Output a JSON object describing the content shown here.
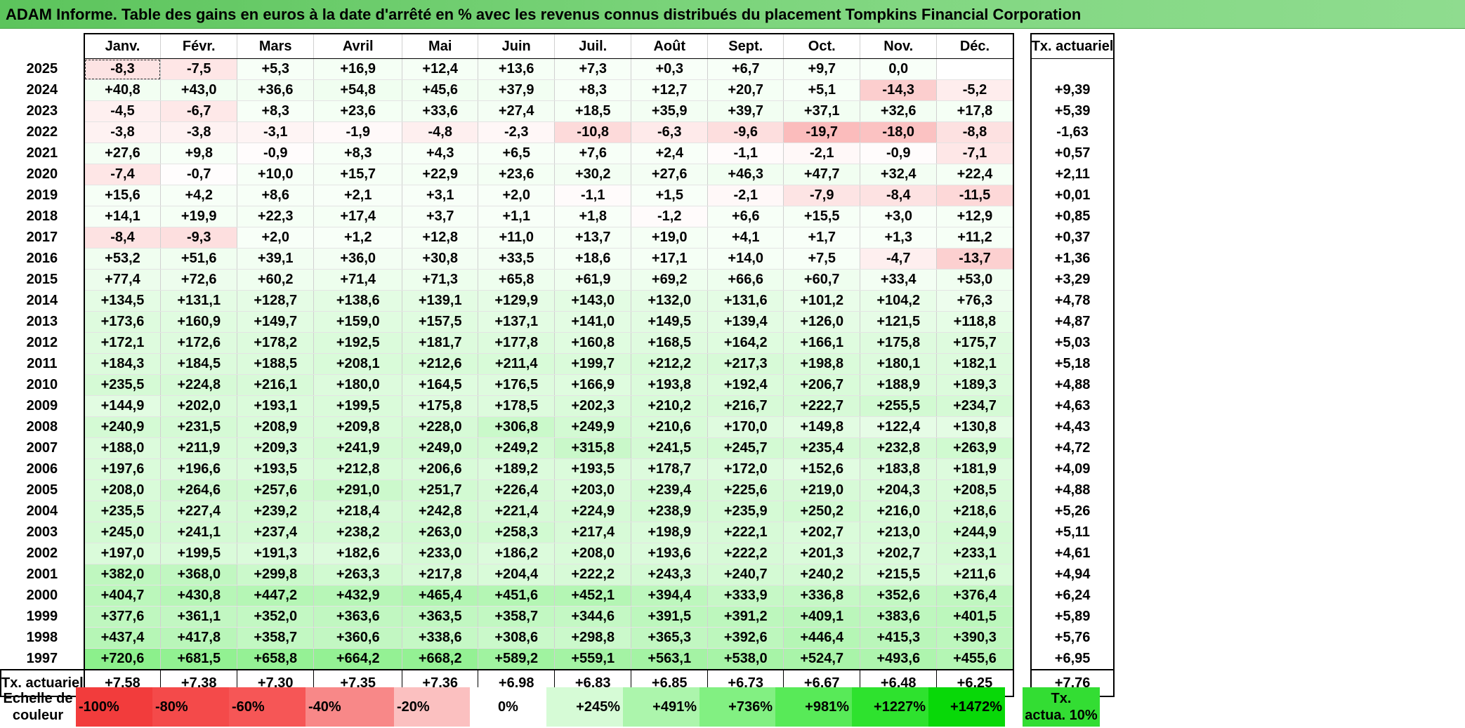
{
  "title": "ADAM Informe. Table des gains en euros à la date d'arrêté en % avec les revenus connus distribués du placement Tompkins Financial Corporation",
  "months": [
    "Janv.",
    "Févr.",
    "Mars",
    "Avril",
    "Mai",
    "Juin",
    "Juil.",
    "Août",
    "Sept.",
    "Oct.",
    "Nov.",
    "Déc."
  ],
  "annual_header": "Tx. actuariel",
  "rows": [
    {
      "year": "2025",
      "cells": [
        "-8,3",
        "-7,5",
        "+5,3",
        "+16,9",
        "+12,4",
        "+13,6",
        "+7,3",
        "+0,3",
        "+6,7",
        "+9,7",
        "0,0",
        ""
      ],
      "annual": ""
    },
    {
      "year": "2024",
      "cells": [
        "+40,8",
        "+43,0",
        "+36,6",
        "+54,8",
        "+45,6",
        "+37,9",
        "+8,3",
        "+12,7",
        "+20,7",
        "+5,1",
        "-14,3",
        "-5,2"
      ],
      "annual": "+9,39"
    },
    {
      "year": "2023",
      "cells": [
        "-4,5",
        "-6,7",
        "+8,3",
        "+23,6",
        "+33,6",
        "+27,4",
        "+18,5",
        "+35,9",
        "+39,7",
        "+37,1",
        "+32,6",
        "+17,8"
      ],
      "annual": "+5,39"
    },
    {
      "year": "2022",
      "cells": [
        "-3,8",
        "-3,8",
        "-3,1",
        "-1,9",
        "-4,8",
        "-2,3",
        "-10,8",
        "-6,3",
        "-9,6",
        "-19,7",
        "-18,0",
        "-8,8"
      ],
      "annual": "-1,63"
    },
    {
      "year": "2021",
      "cells": [
        "+27,6",
        "+9,8",
        "-0,9",
        "+8,3",
        "+4,3",
        "+6,5",
        "+7,6",
        "+2,4",
        "-1,1",
        "-2,1",
        "-0,9",
        "-7,1"
      ],
      "annual": "+0,57"
    },
    {
      "year": "2020",
      "cells": [
        "-7,4",
        "-0,7",
        "+10,0",
        "+15,7",
        "+22,9",
        "+23,6",
        "+30,2",
        "+27,6",
        "+46,3",
        "+47,7",
        "+32,4",
        "+22,4"
      ],
      "annual": "+2,11"
    },
    {
      "year": "2019",
      "cells": [
        "+15,6",
        "+4,2",
        "+8,6",
        "+2,1",
        "+3,1",
        "+2,0",
        "-1,1",
        "+1,5",
        "-2,1",
        "-7,9",
        "-8,4",
        "-11,5"
      ],
      "annual": "+0,01"
    },
    {
      "year": "2018",
      "cells": [
        "+14,1",
        "+19,9",
        "+22,3",
        "+17,4",
        "+3,7",
        "+1,1",
        "+1,8",
        "-1,2",
        "+6,6",
        "+15,5",
        "+3,0",
        "+12,9"
      ],
      "annual": "+0,85"
    },
    {
      "year": "2017",
      "cells": [
        "-8,4",
        "-9,3",
        "+2,0",
        "+1,2",
        "+12,8",
        "+11,0",
        "+13,7",
        "+19,0",
        "+4,1",
        "+1,7",
        "+1,3",
        "+11,2"
      ],
      "annual": "+0,37"
    },
    {
      "year": "2016",
      "cells": [
        "+53,2",
        "+51,6",
        "+39,1",
        "+36,0",
        "+30,8",
        "+33,5",
        "+18,6",
        "+17,1",
        "+14,0",
        "+7,5",
        "-4,7",
        "-13,7"
      ],
      "annual": "+1,36"
    },
    {
      "year": "2015",
      "cells": [
        "+77,4",
        "+72,6",
        "+60,2",
        "+71,4",
        "+71,3",
        "+65,8",
        "+61,9",
        "+69,2",
        "+66,6",
        "+60,7",
        "+33,4",
        "+53,0"
      ],
      "annual": "+3,29"
    },
    {
      "year": "2014",
      "cells": [
        "+134,5",
        "+131,1",
        "+128,7",
        "+138,6",
        "+139,1",
        "+129,9",
        "+143,0",
        "+132,0",
        "+131,6",
        "+101,2",
        "+104,2",
        "+76,3"
      ],
      "annual": "+4,78"
    },
    {
      "year": "2013",
      "cells": [
        "+173,6",
        "+160,9",
        "+149,7",
        "+159,0",
        "+157,5",
        "+137,1",
        "+141,0",
        "+149,5",
        "+139,4",
        "+126,0",
        "+121,5",
        "+118,8"
      ],
      "annual": "+4,87"
    },
    {
      "year": "2012",
      "cells": [
        "+172,1",
        "+172,6",
        "+178,2",
        "+192,5",
        "+181,7",
        "+177,8",
        "+160,8",
        "+168,5",
        "+164,2",
        "+166,1",
        "+175,8",
        "+175,7"
      ],
      "annual": "+5,03"
    },
    {
      "year": "2011",
      "cells": [
        "+184,3",
        "+184,5",
        "+188,5",
        "+208,1",
        "+212,6",
        "+211,4",
        "+199,7",
        "+212,2",
        "+217,3",
        "+198,8",
        "+180,1",
        "+182,1"
      ],
      "annual": "+5,18"
    },
    {
      "year": "2010",
      "cells": [
        "+235,5",
        "+224,8",
        "+216,1",
        "+180,0",
        "+164,5",
        "+176,5",
        "+166,9",
        "+193,8",
        "+192,4",
        "+206,7",
        "+188,9",
        "+189,3"
      ],
      "annual": "+4,88"
    },
    {
      "year": "2009",
      "cells": [
        "+144,9",
        "+202,0",
        "+193,1",
        "+199,5",
        "+175,8",
        "+178,5",
        "+202,3",
        "+210,2",
        "+216,7",
        "+222,7",
        "+255,5",
        "+234,7"
      ],
      "annual": "+4,63"
    },
    {
      "year": "2008",
      "cells": [
        "+240,9",
        "+231,5",
        "+208,9",
        "+209,8",
        "+228,0",
        "+306,8",
        "+249,9",
        "+210,6",
        "+170,0",
        "+149,8",
        "+122,4",
        "+130,8"
      ],
      "annual": "+4,43"
    },
    {
      "year": "2007",
      "cells": [
        "+188,0",
        "+211,9",
        "+209,3",
        "+241,9",
        "+249,0",
        "+249,2",
        "+315,8",
        "+241,5",
        "+245,7",
        "+235,4",
        "+232,8",
        "+263,9"
      ],
      "annual": "+4,72"
    },
    {
      "year": "2006",
      "cells": [
        "+197,6",
        "+196,6",
        "+193,5",
        "+212,8",
        "+206,6",
        "+189,2",
        "+193,5",
        "+178,7",
        "+172,0",
        "+152,6",
        "+183,8",
        "+181,9"
      ],
      "annual": "+4,09"
    },
    {
      "year": "2005",
      "cells": [
        "+208,0",
        "+264,6",
        "+257,6",
        "+291,0",
        "+251,7",
        "+226,4",
        "+203,0",
        "+239,4",
        "+225,6",
        "+219,0",
        "+204,3",
        "+208,5"
      ],
      "annual": "+4,88"
    },
    {
      "year": "2004",
      "cells": [
        "+235,5",
        "+227,4",
        "+239,2",
        "+218,4",
        "+242,8",
        "+221,4",
        "+224,9",
        "+238,9",
        "+235,9",
        "+250,2",
        "+216,0",
        "+218,6"
      ],
      "annual": "+5,26"
    },
    {
      "year": "2003",
      "cells": [
        "+245,0",
        "+241,1",
        "+237,4",
        "+238,2",
        "+263,0",
        "+258,3",
        "+217,4",
        "+198,9",
        "+222,1",
        "+202,7",
        "+213,0",
        "+244,9"
      ],
      "annual": "+5,11"
    },
    {
      "year": "2002",
      "cells": [
        "+197,0",
        "+199,5",
        "+191,3",
        "+182,6",
        "+233,0",
        "+186,2",
        "+208,0",
        "+193,6",
        "+222,2",
        "+201,3",
        "+202,7",
        "+233,1"
      ],
      "annual": "+4,61"
    },
    {
      "year": "2001",
      "cells": [
        "+382,0",
        "+368,0",
        "+299,8",
        "+263,3",
        "+217,8",
        "+204,4",
        "+222,2",
        "+243,3",
        "+240,7",
        "+240,2",
        "+215,5",
        "+211,6"
      ],
      "annual": "+4,94"
    },
    {
      "year": "2000",
      "cells": [
        "+404,7",
        "+430,8",
        "+447,2",
        "+432,9",
        "+465,4",
        "+451,6",
        "+452,1",
        "+394,4",
        "+333,9",
        "+336,8",
        "+352,6",
        "+376,4"
      ],
      "annual": "+6,24"
    },
    {
      "year": "1999",
      "cells": [
        "+377,6",
        "+361,1",
        "+352,0",
        "+363,6",
        "+363,5",
        "+358,7",
        "+344,6",
        "+391,5",
        "+391,2",
        "+409,1",
        "+383,6",
        "+401,5"
      ],
      "annual": "+5,89"
    },
    {
      "year": "1998",
      "cells": [
        "+437,4",
        "+417,8",
        "+358,7",
        "+360,6",
        "+338,6",
        "+308,6",
        "+298,8",
        "+365,3",
        "+392,6",
        "+446,4",
        "+415,3",
        "+390,3"
      ],
      "annual": "+5,76"
    },
    {
      "year": "1997",
      "cells": [
        "+720,6",
        "+681,5",
        "+658,8",
        "+664,2",
        "+668,2",
        "+589,2",
        "+559,1",
        "+563,1",
        "+538,0",
        "+524,7",
        "+493,6",
        "+455,6"
      ],
      "annual": "+6,95"
    }
  ],
  "totals": {
    "label": "Tx. actuariel",
    "cells": [
      "+7,58",
      "+7,38",
      "+7,30",
      "+7,35",
      "+7,36",
      "+6,98",
      "+6,83",
      "+6,85",
      "+6,73",
      "+6,67",
      "+6,48",
      "+6,25"
    ],
    "overall": "+7,76"
  },
  "scale": {
    "label_line1": "Echelle de",
    "label_line2": "couleur",
    "steps": [
      {
        "label": "-100%",
        "color": "#f23c3c",
        "kind": "neg"
      },
      {
        "label": "-80%",
        "color": "#f44a4a",
        "kind": "neg"
      },
      {
        "label": "-60%",
        "color": "#f65656",
        "kind": "neg"
      },
      {
        "label": "-40%",
        "color": "#f88888",
        "kind": "neg"
      },
      {
        "label": "-20%",
        "color": "#fbc0c0",
        "kind": "neg"
      },
      {
        "label": "0%",
        "color": "#ffffff",
        "kind": "zero"
      },
      {
        "label": "+245%",
        "color": "#d6fbd6",
        "kind": "pos"
      },
      {
        "label": "+491%",
        "color": "#acf5ac",
        "kind": "pos"
      },
      {
        "label": "+736%",
        "color": "#82f082",
        "kind": "pos"
      },
      {
        "label": "+981%",
        "color": "#58ea58",
        "kind": "pos"
      },
      {
        "label": "+1227%",
        "color": "#2ee22e",
        "kind": "pos"
      },
      {
        "label": "+1472%",
        "color": "#08d808",
        "kind": "pos"
      }
    ],
    "actuarial_line1": "Tx.",
    "actuarial_line2": "actua. 10%",
    "actuarial_color": "#33dd33"
  },
  "colors": {
    "title_bg": "#7fd67f",
    "negative_max": "#f23c3c",
    "positive_max": "#08d808"
  }
}
